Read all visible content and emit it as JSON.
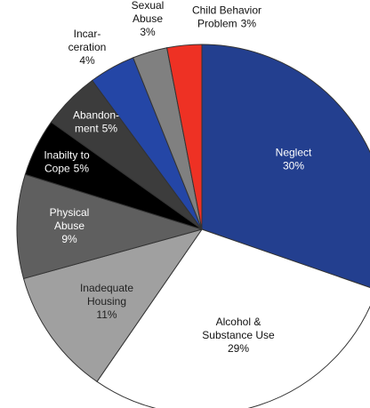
{
  "chart_data": {
    "type": "pie",
    "categories": [
      "Neglect",
      "Alcohol &\nSubstance Use",
      "Inadequate\nHousing",
      "Physical\nAbuse",
      "Inabilty to\nCope",
      "Abandon-\nment",
      "Incar-\nceration",
      "Sexual\nAbuse",
      "Child Behavior\nProblem"
    ],
    "values": [
      30,
      29,
      11,
      9,
      5,
      5,
      4,
      3,
      3
    ],
    "value_labels": [
      "30%",
      "29%",
      "11%",
      "9%",
      "5%",
      "5%",
      "4%",
      "3%",
      "3%"
    ],
    "colors": [
      "#233f8f",
      "#ffffff",
      "#a0a0a0",
      "#5f5f5f",
      "#000000",
      "#3c3c3c",
      "#2446a6",
      "#808080",
      "#ee3124"
    ]
  }
}
